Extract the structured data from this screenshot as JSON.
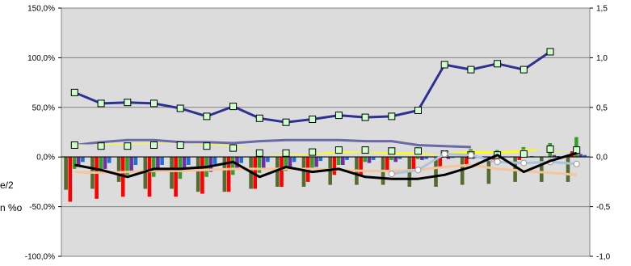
{
  "chart_data": {
    "type": "bar",
    "title": "",
    "xlabel": "",
    "y_left": {
      "ylim": [
        -100,
        150
      ],
      "ticks": [
        "-100,0%",
        "-50,0%",
        "0,0%",
        "50,0%",
        "100,0%",
        "150,0%"
      ]
    },
    "y_right": {
      "ylim": [
        -1,
        1.5
      ],
      "ticks": [
        "-1,0",
        "-0,5",
        "0,0",
        "0,5",
        "1,0",
        "1,5"
      ]
    },
    "left_edge_labels": [
      "e/2",
      "n %o"
    ],
    "grid": true,
    "legend": "none",
    "categories": 20,
    "bar_series": [
      {
        "color": "#556b2f",
        "values": [
          -33,
          -32,
          -25,
          -32,
          -32,
          -35,
          -35,
          -32,
          -30,
          -30,
          -28,
          -28,
          -28,
          -30,
          -30,
          -28,
          -27,
          -25,
          -25,
          -25
        ]
      },
      {
        "color": "#ff0000",
        "values": [
          -45,
          -42,
          -40,
          -40,
          -40,
          -37,
          -35,
          -32,
          -30,
          -25,
          -18,
          -18,
          -15,
          -12,
          -10,
          -8,
          -5,
          -3,
          0,
          8
        ]
      },
      {
        "color": "#33a02c",
        "values": [
          -12,
          -15,
          -18,
          -20,
          -22,
          -20,
          -18,
          -16,
          -14,
          -12,
          -8,
          -5,
          -3,
          -2,
          5,
          8,
          7,
          10,
          14,
          20
        ]
      },
      {
        "color": "#7030a0",
        "values": [
          -10,
          -12,
          -15,
          -15,
          -15,
          -15,
          -13,
          -12,
          -12,
          -10,
          -8,
          -6,
          -5,
          -3,
          -2,
          -1,
          0,
          0,
          2,
          3
        ]
      },
      {
        "color": "#1f6fd0",
        "values": [
          -5,
          -6,
          -8,
          -8,
          -8,
          -7,
          -6,
          -5,
          -5,
          -4,
          -3,
          -3,
          -2,
          -2,
          -1,
          0,
          0,
          1,
          1,
          2
        ]
      }
    ],
    "line_series": [
      {
        "color": "#2e3192",
        "marker": "square",
        "values": [
          65,
          54,
          55,
          54,
          49,
          41,
          51,
          39,
          35,
          38,
          42,
          40,
          41,
          47,
          93,
          88,
          94,
          88,
          106,
          null
        ]
      },
      {
        "color": "#6a6aa8",
        "marker": "none",
        "values": [
          12,
          15,
          17,
          17,
          15,
          15,
          14,
          16,
          17,
          17,
          17,
          16,
          16,
          12,
          11,
          10,
          null,
          null,
          null,
          null
        ]
      },
      {
        "color": "#ffff00",
        "marker": "none",
        "values": [
          11,
          12,
          12,
          13,
          12,
          12,
          10,
          4,
          3,
          4,
          5,
          6,
          4,
          4,
          3,
          5,
          4,
          6,
          7,
          7
        ]
      },
      {
        "color": "#d8d8ef",
        "marker": "square",
        "values": [
          12,
          11,
          11,
          12,
          12,
          11,
          9,
          4,
          4,
          5,
          7,
          7,
          6,
          6,
          3,
          2,
          2,
          3,
          8,
          7
        ]
      },
      {
        "color": "#f5c49b",
        "marker": "none",
        "values": [
          -15,
          -16,
          -15,
          -14,
          -14,
          -13,
          -12,
          -12,
          -12,
          -12,
          -13,
          -14,
          -14,
          -13,
          -10,
          -8,
          -12,
          -14,
          -16,
          -18
        ]
      },
      {
        "color": "#a8c4e0",
        "marker": "circle",
        "values": [
          null,
          null,
          null,
          null,
          null,
          null,
          null,
          null,
          null,
          null,
          null,
          null,
          -17,
          -13,
          3,
          2,
          -5,
          -6,
          -5,
          -7
        ]
      },
      {
        "color": "#000000",
        "marker": "none",
        "values": [
          -8,
          -13,
          -20,
          -12,
          -12,
          -10,
          -5,
          -20,
          -10,
          -15,
          -12,
          -20,
          -22,
          -22,
          -18,
          -10,
          2,
          -15,
          -4,
          4
        ]
      }
    ]
  }
}
